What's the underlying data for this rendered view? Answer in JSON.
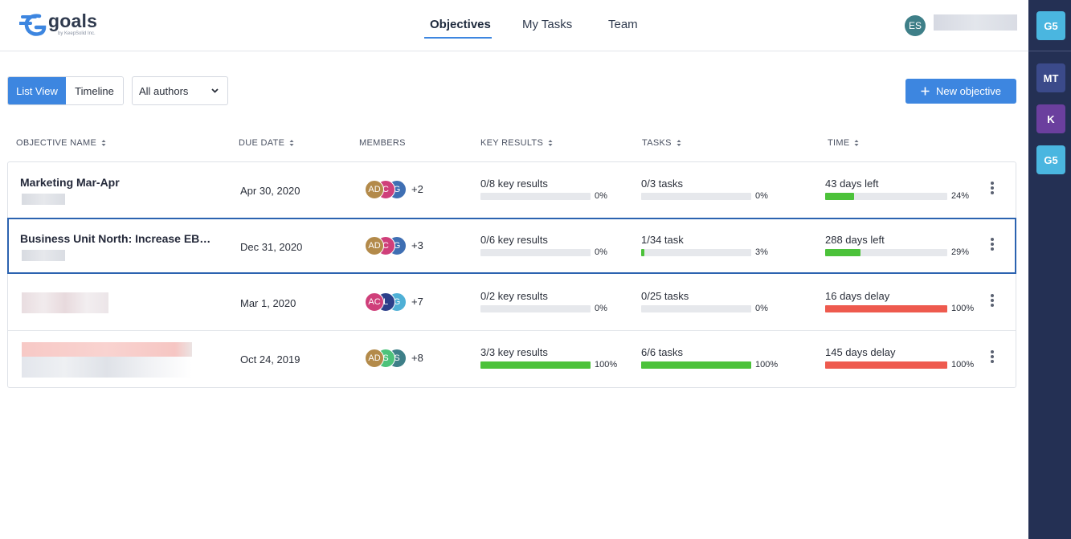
{
  "app": {
    "logo_text": "goals",
    "logo_subtext": "by KeepSolid Inc."
  },
  "nav": {
    "tabs": [
      {
        "label": "Objectives",
        "active": true
      },
      {
        "label": "My Tasks",
        "active": false
      },
      {
        "label": "Team",
        "active": false
      }
    ]
  },
  "user": {
    "initials": "ES",
    "avatar_color": "#3e7f88"
  },
  "workspaces": [
    {
      "initials": "G5",
      "color": "#4ab6e0"
    },
    {
      "initials": "MT",
      "color": "#3b4a8a"
    },
    {
      "initials": "K",
      "color": "#6b3f9e"
    },
    {
      "initials": "G5",
      "color": "#4ab6e0"
    }
  ],
  "toolbar": {
    "list_view_label": "List View",
    "timeline_label": "Timeline",
    "authors_filter": "All authors",
    "new_objective_label": "New objective"
  },
  "table": {
    "headers": {
      "name": "OBJECTIVE NAME",
      "due": "DUE DATE",
      "members": "MEMBERS",
      "key_results": "KEY RESULTS",
      "tasks": "TASKS",
      "time": "TIME"
    },
    "rows": [
      {
        "name": "Marketing Mar-Apr",
        "due": "Apr 30, 2020",
        "members": [
          {
            "initials": "AD",
            "color": "#b38a4a"
          },
          {
            "initials": "C",
            "color": "#cf3f7a"
          },
          {
            "initials": "G",
            "color": "#3f6fb3"
          }
        ],
        "members_more": "+2",
        "key_results_label": "0/8 key results",
        "key_results_pct": "0%",
        "key_results_value": 0,
        "tasks_label": "0/3 tasks",
        "tasks_pct": "0%",
        "tasks_value": 0,
        "time_label": "43 days left",
        "time_pct": "24%",
        "time_value": 24,
        "time_color": "#4cc23a"
      },
      {
        "name": "Business Unit North: Increase EBITDA",
        "due": "Dec 31, 2020",
        "members": [
          {
            "initials": "AD",
            "color": "#b38a4a"
          },
          {
            "initials": "C",
            "color": "#cf3f7a"
          },
          {
            "initials": "G",
            "color": "#3f6fb3"
          }
        ],
        "members_more": "+3",
        "key_results_label": "0/6 key results",
        "key_results_pct": "0%",
        "key_results_value": 0,
        "tasks_label": "1/34 task",
        "tasks_pct": "3%",
        "tasks_value": 3,
        "time_label": "288 days left",
        "time_pct": "29%",
        "time_value": 29,
        "time_color": "#4cc23a"
      },
      {
        "name": "",
        "due": "Mar 1, 2020",
        "members": [
          {
            "initials": "AC",
            "color": "#cf3f7a"
          },
          {
            "initials": "L",
            "color": "#2c3f8a"
          },
          {
            "initials": "G",
            "color": "#4fb0d6"
          }
        ],
        "members_more": "+7",
        "key_results_label": "0/2 key results",
        "key_results_pct": "0%",
        "key_results_value": 0,
        "tasks_label": "0/25 tasks",
        "tasks_pct": "0%",
        "tasks_value": 0,
        "time_label": "16 days delay",
        "time_pct": "100%",
        "time_value": 100,
        "time_color": "#ee5a4e"
      },
      {
        "name": "",
        "due": "Oct 24, 2019",
        "members": [
          {
            "initials": "AD",
            "color": "#b38a4a"
          },
          {
            "initials": "S",
            "color": "#4cc27a"
          },
          {
            "initials": "S",
            "color": "#3e7f88"
          }
        ],
        "members_more": "+8",
        "key_results_label": "3/3 key results",
        "key_results_pct": "100%",
        "key_results_value": 100,
        "tasks_label": "6/6 tasks",
        "tasks_pct": "100%",
        "tasks_value": 100,
        "time_label": "145 days delay",
        "time_pct": "100%",
        "time_value": 100,
        "time_color": "#ee5a4e"
      }
    ]
  },
  "colors": {
    "accent": "#3d86e0",
    "progress_green": "#4cc23a",
    "progress_red": "#ee5a4e",
    "sidebar_bg": "#243054"
  }
}
